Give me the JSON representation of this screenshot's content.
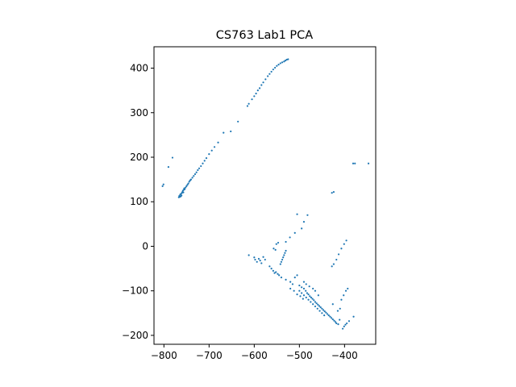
{
  "chart_data": {
    "type": "scatter",
    "title": "CS763 Lab1 PCA",
    "xlabel": "",
    "ylabel": "",
    "xlim": [
      -822,
      -331
    ],
    "ylim": [
      -220,
      448
    ],
    "xticks": [
      -800,
      -700,
      -600,
      -500,
      -400
    ],
    "yticks": [
      -200,
      -100,
      0,
      100,
      200,
      300,
      400
    ],
    "xtick_labels": [
      "−800",
      "−700",
      "−600",
      "−500",
      "−400"
    ],
    "ytick_labels": [
      "−200",
      "−100",
      "0",
      "100",
      "200",
      "300",
      "400"
    ],
    "grid": false,
    "legend": "none",
    "marker_color": "#1f77b4",
    "series": [
      {
        "points": [
          [
            -803,
            135
          ],
          [
            -801,
            139
          ],
          [
            -790,
            178
          ],
          [
            -781,
            199
          ],
          [
            -767,
            110
          ],
          [
            -766,
            113
          ],
          [
            -765,
            111
          ],
          [
            -764,
            116
          ],
          [
            -763,
            112
          ],
          [
            -762,
            118
          ],
          [
            -761,
            114
          ],
          [
            -760,
            120
          ],
          [
            -759,
            122
          ],
          [
            -758,
            125
          ],
          [
            -757,
            121
          ],
          [
            -756,
            127
          ],
          [
            -755,
            130
          ],
          [
            -754,
            128
          ],
          [
            -752,
            132
          ],
          [
            -750,
            135
          ],
          [
            -748,
            138
          ],
          [
            -746,
            141
          ],
          [
            -744,
            145
          ],
          [
            -742,
            148
          ],
          [
            -740,
            150
          ],
          [
            -737,
            154
          ],
          [
            -734,
            158
          ],
          [
            -731,
            162
          ],
          [
            -728,
            166
          ],
          [
            -725,
            171
          ],
          [
            -722,
            175
          ],
          [
            -718,
            180
          ],
          [
            -714,
            186
          ],
          [
            -710,
            192
          ],
          [
            -706,
            198
          ],
          [
            -700,
            207
          ],
          [
            -694,
            215
          ],
          [
            -688,
            223
          ],
          [
            -680,
            233
          ],
          [
            -668,
            255
          ],
          [
            -652,
            258
          ],
          [
            -636,
            280
          ],
          [
            -615,
            315
          ],
          [
            -612,
            320
          ],
          [
            -605,
            330
          ],
          [
            -600,
            337
          ],
          [
            -596,
            343
          ],
          [
            -592,
            350
          ],
          [
            -588,
            355
          ],
          [
            -584,
            362
          ],
          [
            -580,
            368
          ],
          [
            -575,
            375
          ],
          [
            -570,
            382
          ],
          [
            -566,
            387
          ],
          [
            -562,
            392
          ],
          [
            -558,
            397
          ],
          [
            -554,
            401
          ],
          [
            -550,
            405
          ],
          [
            -546,
            408
          ],
          [
            -542,
            411
          ],
          [
            -538,
            413
          ],
          [
            -534,
            415
          ],
          [
            -531,
            417
          ],
          [
            -528,
            419
          ],
          [
            -525,
            420
          ],
          [
            -381,
            186
          ],
          [
            -377,
            186
          ],
          [
            -347,
            186
          ],
          [
            -428,
            120
          ],
          [
            -424,
            122
          ],
          [
            -505,
            72
          ],
          [
            -482,
            70
          ],
          [
            -490,
            55
          ],
          [
            -495,
            40
          ],
          [
            -510,
            30
          ],
          [
            -521,
            20
          ],
          [
            -530,
            10
          ],
          [
            -547,
            8
          ],
          [
            -551,
            5
          ],
          [
            -557,
            -5
          ],
          [
            -553,
            -8
          ],
          [
            -396,
            13
          ],
          [
            -401,
            5
          ],
          [
            -407,
            -5
          ],
          [
            -413,
            -18
          ],
          [
            -418,
            -30
          ],
          [
            -424,
            -40
          ],
          [
            -428,
            -45
          ],
          [
            -612,
            -20
          ],
          [
            -600,
            -25
          ],
          [
            -598,
            -30
          ],
          [
            -594,
            -35
          ],
          [
            -590,
            -28
          ],
          [
            -587,
            -32
          ],
          [
            -584,
            -38
          ],
          [
            -580,
            -24
          ],
          [
            -576,
            -30
          ],
          [
            -566,
            -45
          ],
          [
            -562,
            -50
          ],
          [
            -558,
            -55
          ],
          [
            -555,
            -60
          ],
          [
            -552,
            -58
          ],
          [
            -548,
            -62
          ],
          [
            -545,
            -65
          ],
          [
            -542,
            -40
          ],
          [
            -540,
            -35
          ],
          [
            -538,
            -30
          ],
          [
            -536,
            -25
          ],
          [
            -534,
            -20
          ],
          [
            -532,
            -15
          ],
          [
            -530,
            -10
          ],
          [
            -540,
            -70
          ],
          [
            -530,
            -75
          ],
          [
            -520,
            -80
          ],
          [
            -515,
            -85
          ],
          [
            -510,
            -70
          ],
          [
            -505,
            -65
          ],
          [
            -500,
            -88
          ],
          [
            -495,
            -92
          ],
          [
            -490,
            -95
          ],
          [
            -486,
            -100
          ],
          [
            -483,
            -105
          ],
          [
            -480,
            -108
          ],
          [
            -477,
            -112
          ],
          [
            -474,
            -115
          ],
          [
            -471,
            -118
          ],
          [
            -468,
            -121
          ],
          [
            -465,
            -125
          ],
          [
            -462,
            -128
          ],
          [
            -459,
            -131
          ],
          [
            -456,
            -134
          ],
          [
            -453,
            -137
          ],
          [
            -450,
            -140
          ],
          [
            -447,
            -143
          ],
          [
            -444,
            -146
          ],
          [
            -441,
            -149
          ],
          [
            -438,
            -152
          ],
          [
            -435,
            -155
          ],
          [
            -432,
            -158
          ],
          [
            -429,
            -161
          ],
          [
            -426,
            -164
          ],
          [
            -423,
            -167
          ],
          [
            -420,
            -170
          ],
          [
            -418,
            -173
          ],
          [
            -500,
            -100
          ],
          [
            -495,
            -105
          ],
          [
            -490,
            -110
          ],
          [
            -485,
            -115
          ],
          [
            -480,
            -120
          ],
          [
            -475,
            -125
          ],
          [
            -470,
            -130
          ],
          [
            -465,
            -135
          ],
          [
            -460,
            -140
          ],
          [
            -455,
            -145
          ],
          [
            -450,
            -150
          ],
          [
            -445,
            -155
          ],
          [
            -490,
            -80
          ],
          [
            -485,
            -85
          ],
          [
            -478,
            -90
          ],
          [
            -470,
            -95
          ],
          [
            -465,
            -100
          ],
          [
            -458,
            -110
          ],
          [
            -520,
            -95
          ],
          [
            -512,
            -100
          ],
          [
            -505,
            -108
          ],
          [
            -498,
            -112
          ],
          [
            -492,
            -118
          ],
          [
            -404,
            -185
          ],
          [
            -401,
            -180
          ],
          [
            -398,
            -176
          ],
          [
            -395,
            -173
          ],
          [
            -390,
            -168
          ],
          [
            -380,
            -158
          ],
          [
            -410,
            -140
          ],
          [
            -415,
            -145
          ],
          [
            -407,
            -120
          ],
          [
            -402,
            -110
          ],
          [
            -393,
            -95
          ],
          [
            -397,
            -100
          ],
          [
            -414,
            -175
          ],
          [
            -411,
            -165
          ],
          [
            -426,
            -130
          ]
        ]
      }
    ]
  }
}
